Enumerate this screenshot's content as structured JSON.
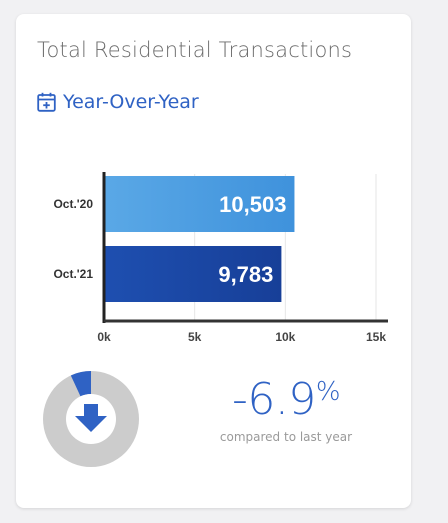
{
  "card": {
    "title": "Total Residential Transactions",
    "subhead": "Year-Over-Year",
    "subhead_icon": "calendar-plus-icon"
  },
  "chart_data": {
    "type": "bar",
    "orientation": "horizontal",
    "categories": [
      "Oct.'20",
      "Oct.'21"
    ],
    "values": [
      10503,
      9783
    ],
    "value_labels": [
      "10,503",
      "9,783"
    ],
    "xlim": [
      0,
      15000
    ],
    "x_ticks": [
      0,
      5000,
      10000,
      15000
    ],
    "x_tick_labels": [
      "0k",
      "5k",
      "10k",
      "15k"
    ],
    "grid": true,
    "bar_colors": [
      "#5aa8e6",
      "#1e4fb0"
    ]
  },
  "summary": {
    "change_value": "-6.9",
    "change_unit": "%",
    "caption": "compared to last year",
    "icon": "arrow-down-icon",
    "donut_fraction": 0.069,
    "colors": {
      "accent": "#2f62c4",
      "track": "#cccccc"
    }
  }
}
